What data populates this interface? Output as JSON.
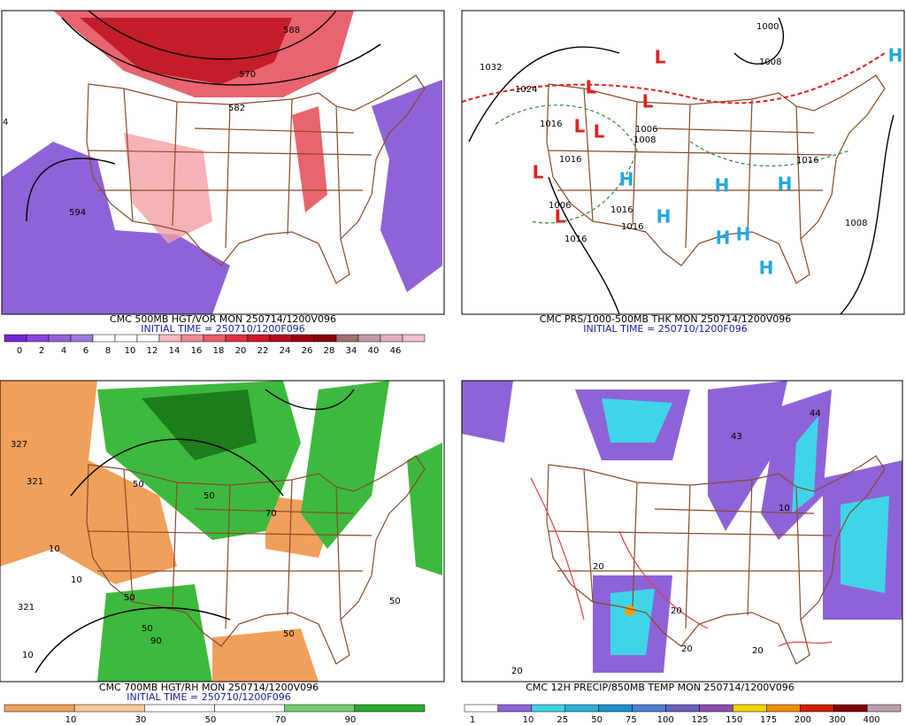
{
  "panels": [
    {
      "title": "CMC 500MB HGT/VOR MON 250714/1200V096",
      "subtitle": "INITIAL TIME = 250710/1200F096",
      "colorbar": [
        "0",
        "2",
        "4",
        "6",
        "8",
        "10",
        "12",
        "14",
        "16",
        "18",
        "20",
        "22",
        "24",
        "26",
        "28",
        "34",
        "40",
        "46"
      ],
      "map_labels": [
        "588",
        "570",
        "582",
        "594",
        "4"
      ]
    },
    {
      "title": "CMC PRS/1000-500MB THK MON 250714/1200V096",
      "subtitle": "INITIAL TIME = 250710/1200F096",
      "map_labels": [
        "1032",
        "1024",
        "1000",
        "1008",
        "1016",
        "1006",
        "1008",
        "1016",
        "1006",
        "1016",
        "1016",
        "1016",
        "1008",
        "1016"
      ],
      "pressure_centers": [
        "L",
        "L",
        "L",
        "L",
        "L",
        "L",
        "L",
        "H",
        "H",
        "H",
        "H",
        "H",
        "H",
        "H",
        "H"
      ]
    },
    {
      "title": "CMC 700MB HGT/RH MON 250714/1200V096",
      "subtitle": "INITIAL TIME = 250710/1200F096",
      "colorbar": [
        "10",
        "30",
        "50",
        "70",
        "90"
      ],
      "map_labels": [
        "327",
        "321",
        "50",
        "10",
        "50",
        "10",
        "50",
        "50",
        "90",
        "70",
        "50",
        "321",
        "10",
        "50"
      ]
    },
    {
      "title": "CMC 12H PRECIP/850MB TEMP MON 250714/1200V096",
      "colorbar": [
        "1",
        "10",
        "25",
        "50",
        "75",
        "100",
        "125",
        "150",
        "175",
        "200",
        "300",
        "400"
      ],
      "map_labels": [
        "20",
        "20",
        "20",
        "20",
        "20",
        "43",
        "44",
        "10"
      ]
    }
  ]
}
